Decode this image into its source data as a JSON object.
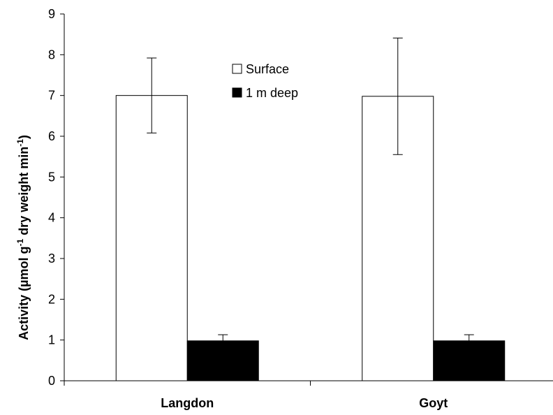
{
  "chart_data": {
    "type": "bar",
    "title": "",
    "categories": [
      "Langdon",
      "Goyt"
    ],
    "series": [
      {
        "name": "Surface",
        "values": [
          7.0,
          6.98
        ],
        "errors": [
          0.92,
          1.43
        ],
        "color": "#ffffff"
      },
      {
        "name": "1 m deep",
        "values": [
          0.98,
          0.98
        ],
        "errors": [
          0.15,
          0.15
        ],
        "color": "#000000"
      }
    ],
    "ylabel": {
      "base": "Activity (µmol g",
      "sup1": "-1",
      "mid": " dry weight min",
      "sup2": "-1",
      "end": ")"
    },
    "xlabel": "",
    "ylim": [
      0,
      9
    ],
    "yticks": [
      "0",
      "1",
      "2",
      "3",
      "4",
      "5",
      "6",
      "7",
      "8",
      "9"
    ],
    "grid": false,
    "legend_position": "top-center",
    "error_bars": true
  }
}
